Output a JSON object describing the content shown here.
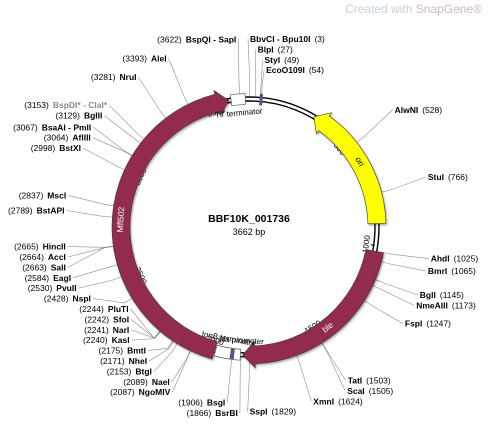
{
  "watermark": {
    "prefix": "Created with ",
    "brand": "SnapGene",
    "mark": "®"
  },
  "map": {
    "name": "BBF10K_001736",
    "length": "3662 bp",
    "total_bp": 3662,
    "backbone_color": "#000000",
    "ticks": [
      {
        "bp": 500,
        "label": "500"
      },
      {
        "bp": 1000,
        "label": "1000"
      },
      {
        "bp": 1500,
        "label": "1500"
      },
      {
        "bp": 2000,
        "label": "2000"
      },
      {
        "bp": 2500,
        "label": "2500"
      },
      {
        "bp": 3000,
        "label": "3000"
      },
      {
        "bp": 3500,
        "label": "3500"
      }
    ],
    "features": [
      {
        "name": "ori",
        "start": 310,
        "end": 900,
        "direction": "reverse",
        "color": "#ffff00",
        "label_color": "#000000"
      },
      {
        "name": "ble",
        "start": 1026,
        "end": 1860,
        "direction": "forward",
        "color": "#93294f",
        "label_color": "#ffffff"
      },
      {
        "name": "Mfl502",
        "start": 1990,
        "end": 3570,
        "direction": "forward",
        "color": "#93294f",
        "label_color": "#ffffff"
      }
    ],
    "small_features": [
      {
        "name": "T7 terminator",
        "start": 3580,
        "end": 3645,
        "color": "#ffffff"
      },
      {
        "name": "",
        "start": 50,
        "end": 60,
        "color": "#7b3fb5"
      },
      {
        "name": "tonB terminator",
        "start": 1870,
        "end": 1900,
        "color": "#ffffff"
      },
      {
        "name": "",
        "start": 1903,
        "end": 1912,
        "color": "#7b3fb5"
      },
      {
        "name": "bla promoter",
        "start": 1915,
        "end": 1985,
        "color": "#ffffff"
      }
    ],
    "feature_labels": [
      {
        "text": "T7 terminator",
        "bp": 3610
      },
      {
        "text": "tonB terminator",
        "bp": 1935
      },
      {
        "text": "bla promoter",
        "bp": 1870
      }
    ],
    "sites": [
      {
        "name": "BbvCI - Bpu10I",
        "pos": "(3)",
        "bp": 3
      },
      {
        "name": "BlpI",
        "pos": "(27)",
        "bp": 27
      },
      {
        "name": "StyI",
        "pos": "(49)",
        "bp": 49
      },
      {
        "name": "EcoO109I",
        "pos": "(54)",
        "bp": 54
      },
      {
        "name": "BspQI - SapI",
        "pos": "(3622)",
        "bp": 3622
      },
      {
        "name": "AleI",
        "pos": "(3393)",
        "bp": 3393
      },
      {
        "name": "NruI",
        "pos": "(3281)",
        "bp": 3281
      },
      {
        "name": "BspDI* - ClaI*",
        "pos": "(3153)",
        "bp": 3153,
        "grey": true
      },
      {
        "name": "BglII",
        "pos": "(3129)",
        "bp": 3129
      },
      {
        "name": "BsaAI - PmlI",
        "pos": "(3067)",
        "bp": 3067
      },
      {
        "name": "AflIII",
        "pos": "(3064)",
        "bp": 3064
      },
      {
        "name": "BstXI",
        "pos": "(2998)",
        "bp": 2998
      },
      {
        "name": "MscI",
        "pos": "(2837)",
        "bp": 2837
      },
      {
        "name": "BstAPI",
        "pos": "(2789)",
        "bp": 2789
      },
      {
        "name": "HincII",
        "pos": "(2665)",
        "bp": 2665
      },
      {
        "name": "AccI",
        "pos": "(2664)",
        "bp": 2664
      },
      {
        "name": "SalI",
        "pos": "(2663)",
        "bp": 2663
      },
      {
        "name": "EagI",
        "pos": "(2584)",
        "bp": 2584
      },
      {
        "name": "PvuII",
        "pos": "(2530)",
        "bp": 2530
      },
      {
        "name": "NspI",
        "pos": "(2428)",
        "bp": 2428
      },
      {
        "name": "PluTI",
        "pos": "(2244)",
        "bp": 2244
      },
      {
        "name": "SfoI",
        "pos": "(2242)",
        "bp": 2242
      },
      {
        "name": "NarI",
        "pos": "(2241)",
        "bp": 2241
      },
      {
        "name": "KasI",
        "pos": "(2240)",
        "bp": 2240
      },
      {
        "name": "BmtI",
        "pos": "(2175)",
        "bp": 2175
      },
      {
        "name": "NheI",
        "pos": "(2171)",
        "bp": 2171
      },
      {
        "name": "BtgI",
        "pos": "(2153)",
        "bp": 2153
      },
      {
        "name": "NaeI",
        "pos": "(2089)",
        "bp": 2089
      },
      {
        "name": "NgoMIV",
        "pos": "(2087)",
        "bp": 2087
      },
      {
        "name": "BsgI",
        "pos": "(1906)",
        "bp": 1906
      },
      {
        "name": "BsrBI",
        "pos": "(1866)",
        "bp": 1866
      },
      {
        "name": "SspI",
        "pos": "(1829)",
        "bp": 1829
      },
      {
        "name": "XmnI",
        "pos": "(1624)",
        "bp": 1624
      },
      {
        "name": "ScaI",
        "pos": "(1505)",
        "bp": 1505
      },
      {
        "name": "TatI",
        "pos": "(1503)",
        "bp": 1503
      },
      {
        "name": "FspI",
        "pos": "(1247)",
        "bp": 1247
      },
      {
        "name": "NmeAIII",
        "pos": "(1173)",
        "bp": 1173
      },
      {
        "name": "BglI",
        "pos": "(1145)",
        "bp": 1145
      },
      {
        "name": "BmrI",
        "pos": "(1065)",
        "bp": 1065
      },
      {
        "name": "AhdI",
        "pos": "(1025)",
        "bp": 1025
      },
      {
        "name": "StuI",
        "pos": "(766)",
        "bp": 766
      },
      {
        "name": "AlwNI",
        "pos": "(528)",
        "bp": 528
      }
    ]
  }
}
